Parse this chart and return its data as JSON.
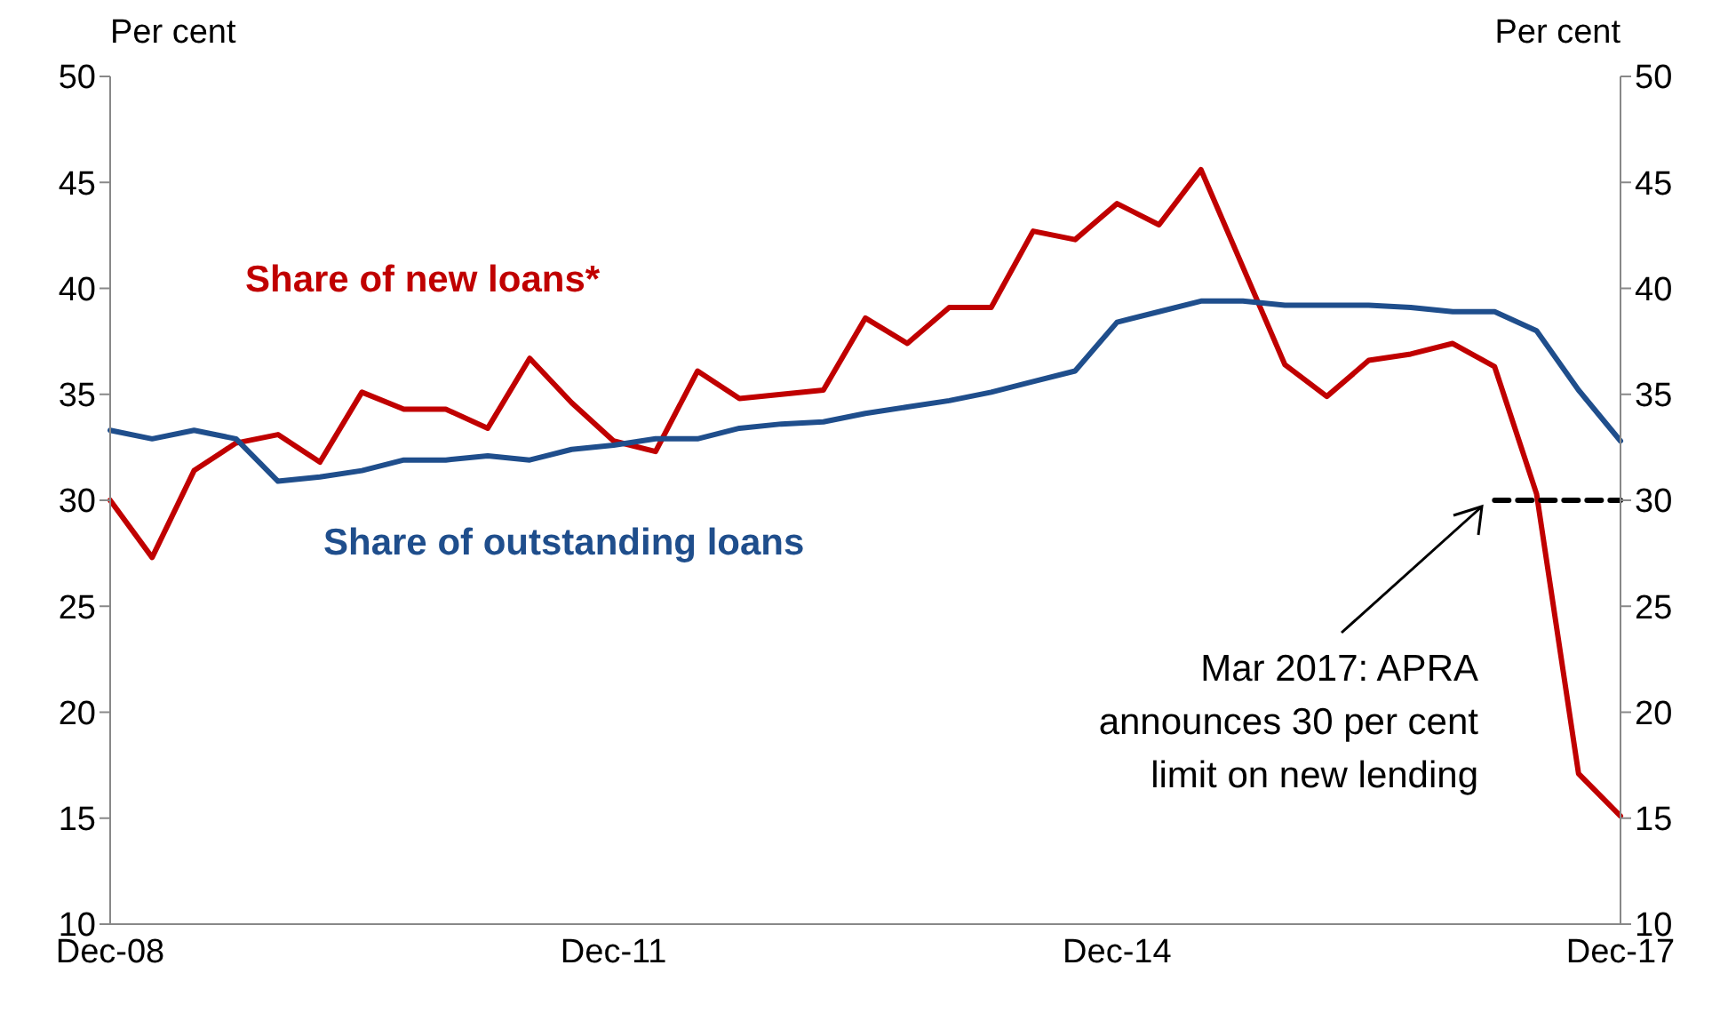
{
  "chart_data": {
    "type": "line",
    "ylabel": "Per cent",
    "y2label": "Per cent",
    "categories": [
      "Dec-08",
      null,
      null,
      null,
      null,
      null,
      null,
      null,
      null,
      null,
      null,
      null,
      "Dec-11",
      null,
      null,
      null,
      null,
      null,
      null,
      null,
      null,
      null,
      null,
      null,
      "Dec-14",
      null,
      null,
      null,
      null,
      null,
      null,
      null,
      null,
      null,
      null,
      null,
      "Dec-17"
    ],
    "series": [
      {
        "name": "Share of new loans*",
        "color": "#c00000",
        "values": [
          30.0,
          27.3,
          31.4,
          32.7,
          33.1,
          31.8,
          35.1,
          34.3,
          34.3,
          33.4,
          36.7,
          34.6,
          32.8,
          32.3,
          36.1,
          34.8,
          35.0,
          35.2,
          38.6,
          37.4,
          39.1,
          39.1,
          42.7,
          42.3,
          44.0,
          43.0,
          45.6,
          41.0,
          36.4,
          34.9,
          36.6,
          36.9,
          37.4,
          36.3,
          30.3,
          17.1,
          15.1
        ]
      },
      {
        "name": "Share of outstanding loans",
        "color": "#1f4e8c",
        "values": [
          33.3,
          32.9,
          33.3,
          32.9,
          30.9,
          31.1,
          31.4,
          31.9,
          31.9,
          32.1,
          31.9,
          32.4,
          32.6,
          32.9,
          32.9,
          33.4,
          33.6,
          33.7,
          34.1,
          34.4,
          34.7,
          35.1,
          35.6,
          36.1,
          38.4,
          38.9,
          39.4,
          39.4,
          39.2,
          39.2,
          39.2,
          39.1,
          38.9,
          38.9,
          38.0,
          35.2,
          32.8
        ]
      },
      {
        "type": "line",
        "color": "#000000",
        "line_style": "dashed",
        "values": [
          null,
          null,
          null,
          null,
          null,
          null,
          null,
          null,
          null,
          null,
          null,
          null,
          null,
          null,
          null,
          null,
          null,
          null,
          null,
          null,
          null,
          null,
          null,
          null,
          null,
          null,
          null,
          null,
          null,
          null,
          null,
          null,
          null,
          30,
          30,
          30,
          30
        ]
      }
    ],
    "annotations": [
      "Mar 2017: APRA announces 30 per cent limit on new lending"
    ],
    "ylim": [
      10,
      50
    ],
    "yticks": [
      10,
      15,
      20,
      25,
      30,
      35,
      40,
      45,
      50
    ],
    "y2lim": [
      10,
      50
    ],
    "y2ticks": [
      10,
      15,
      20,
      25,
      30,
      35,
      40,
      45,
      50
    ],
    "grid": false,
    "legend": false,
    "line_style": "solid",
    "marker": "none"
  }
}
